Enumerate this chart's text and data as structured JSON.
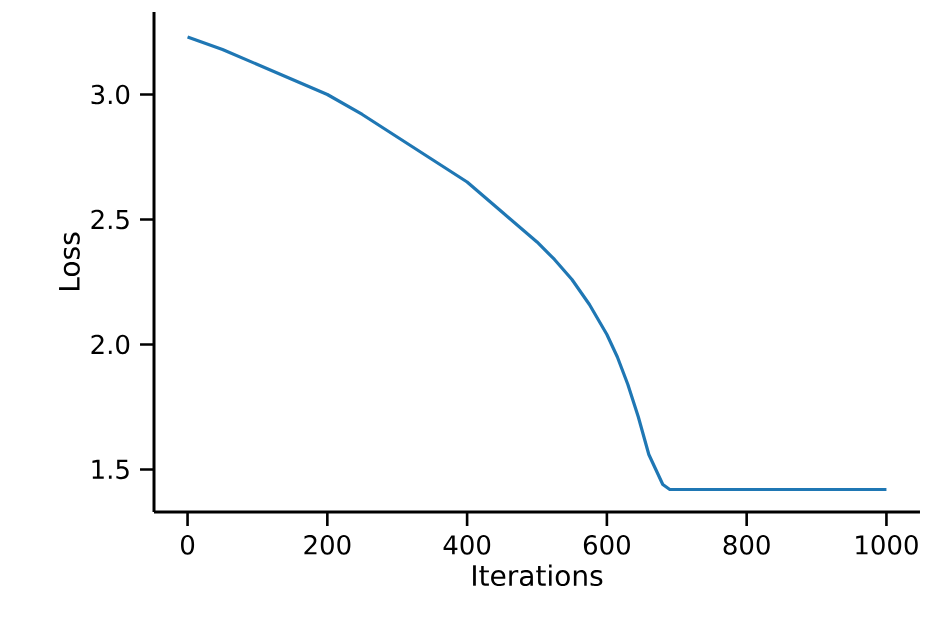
{
  "chart_data": {
    "type": "line",
    "xlabel": "Iterations",
    "ylabel": "Loss",
    "x": [
      0,
      50,
      100,
      150,
      200,
      250,
      300,
      350,
      400,
      450,
      500,
      525,
      550,
      575,
      600,
      615,
      630,
      645,
      660,
      670,
      680,
      685,
      690,
      800,
      1000
    ],
    "series": [
      {
        "color": "#1f77b4",
        "values": [
          3.23,
          3.18,
          3.12,
          3.06,
          3.0,
          2.92,
          2.83,
          2.74,
          2.65,
          2.53,
          2.41,
          2.34,
          2.26,
          2.16,
          2.04,
          1.95,
          1.84,
          1.71,
          1.56,
          1.5,
          1.44,
          1.43,
          1.42,
          1.42,
          1.42
        ]
      }
    ],
    "xlim": [
      -48,
      1048
    ],
    "ylim": [
      1.33,
      3.33
    ],
    "xticks": [
      0,
      200,
      400,
      600,
      800,
      1000
    ],
    "yticks": [
      1.5,
      {
        "value": 2,
        "label": "2.0"
      },
      2.5,
      {
        "value": 3,
        "label": "3.0"
      }
    ],
    "grid": false
  }
}
